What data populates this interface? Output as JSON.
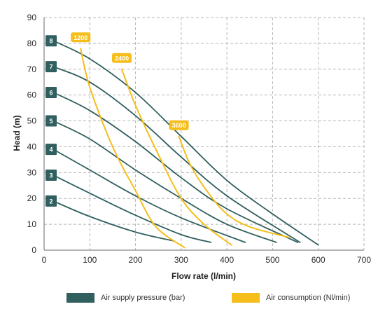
{
  "colors": {
    "pressure": "#2f5f5e",
    "air": "#f5be1a",
    "grid": "#b5b5b5",
    "axis": "#6a6a6a",
    "text": "#2b2b2b"
  },
  "chart_data": {
    "type": "line",
    "xlabel": "Flow rate (l/min)",
    "ylabel": "Head (m)",
    "xlim": [
      0,
      700
    ],
    "ylim": [
      0,
      90
    ],
    "x_ticks": [
      0,
      100,
      200,
      300,
      400,
      500,
      600,
      700
    ],
    "y_ticks": [
      0,
      10,
      20,
      30,
      40,
      50,
      60,
      70,
      80,
      90
    ],
    "grid": true,
    "legend_position": "bottom",
    "pressure_series": [
      {
        "label": "2",
        "points": [
          [
            20,
            19
          ],
          [
            100,
            13
          ],
          [
            200,
            7
          ],
          [
            285,
            3.5
          ]
        ]
      },
      {
        "label": "3",
        "points": [
          [
            20,
            29
          ],
          [
            100,
            22
          ],
          [
            200,
            13.5
          ],
          [
            300,
            6
          ],
          [
            365,
            3
          ]
        ]
      },
      {
        "label": "4",
        "points": [
          [
            20,
            39
          ],
          [
            100,
            31
          ],
          [
            200,
            21
          ],
          [
            300,
            12.5
          ],
          [
            440,
            3
          ]
        ]
      },
      {
        "label": "5",
        "points": [
          [
            20,
            50
          ],
          [
            100,
            43
          ],
          [
            200,
            31
          ],
          [
            300,
            20
          ],
          [
            400,
            10
          ],
          [
            508,
            3
          ]
        ]
      },
      {
        "label": "6",
        "points": [
          [
            20,
            61
          ],
          [
            100,
            54
          ],
          [
            200,
            42
          ],
          [
            300,
            28
          ],
          [
            400,
            16
          ],
          [
            555,
            3
          ]
        ]
      },
      {
        "label": "7",
        "points": [
          [
            20,
            71
          ],
          [
            100,
            65
          ],
          [
            200,
            52
          ],
          [
            300,
            36
          ],
          [
            400,
            21
          ],
          [
            560,
            3
          ]
        ]
      },
      {
        "label": "8",
        "points": [
          [
            20,
            81
          ],
          [
            100,
            74
          ],
          [
            200,
            61
          ],
          [
            300,
            44
          ],
          [
            400,
            27
          ],
          [
            500,
            14
          ],
          [
            600,
            2
          ]
        ]
      }
    ],
    "air_series": [
      {
        "label": "1200",
        "points": [
          [
            80,
            78
          ],
          [
            100,
            63
          ],
          [
            150,
            40
          ],
          [
            200,
            23
          ],
          [
            245,
            9
          ],
          [
            307,
            1
          ]
        ]
      },
      {
        "label": "2400",
        "points": [
          [
            170,
            70
          ],
          [
            200,
            56
          ],
          [
            250,
            37
          ],
          [
            300,
            20
          ],
          [
            350,
            10
          ],
          [
            410,
            2
          ]
        ]
      },
      {
        "label": "3600",
        "points": [
          [
            295,
            44
          ],
          [
            320,
            33
          ],
          [
            360,
            22
          ],
          [
            400,
            14
          ],
          [
            450,
            9
          ],
          [
            535,
            5
          ]
        ]
      }
    ],
    "legend": [
      {
        "label": "Air supply pressure (bar)",
        "color": "#2f5f5e"
      },
      {
        "label": "Air consumption (Nl/min)",
        "color": "#f5be1a"
      }
    ]
  }
}
